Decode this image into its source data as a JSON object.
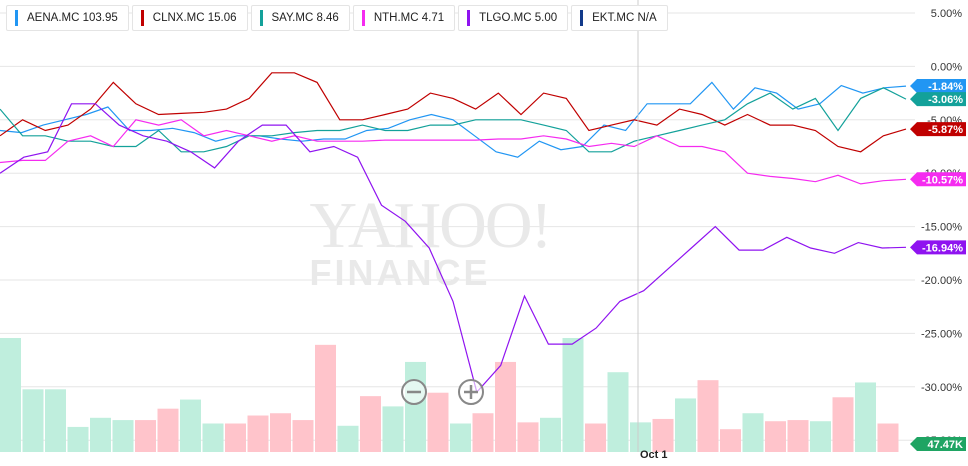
{
  "legend": [
    {
      "label": "AENA.MC 103.95",
      "color": "#2196f3"
    },
    {
      "label": "CLNX.MC 15.06",
      "color": "#c00000"
    },
    {
      "label": "SAY.MC 8.46",
      "color": "#13a19a"
    },
    {
      "label": "NTH.MC 4.71",
      "color": "#f52bf0"
    },
    {
      "label": "TLGO.MC 5.00",
      "color": "#8f13f0"
    },
    {
      "label": "EKT.MC N/A",
      "color": "#123a8a"
    }
  ],
  "watermark": {
    "line1": "YAHOO!",
    "line2": "FINANCE"
  },
  "zoom": {
    "out_icon": "zoom-out-icon",
    "in_icon": "zoom-in-icon"
  },
  "chart_data": {
    "type": "line",
    "y_unit": "%",
    "ylim": [
      -35,
      5
    ],
    "yticks": [
      "5.00%",
      "0.00%",
      "-5.00%",
      "-10.00%",
      "-15.00%",
      "-20.00%",
      "-25.00%",
      "-30.00%",
      "-35.00%"
    ],
    "x_label": "Oct 1",
    "series": [
      {
        "name": "AENA.MC",
        "color": "#2196f3",
        "last_label": "-1.84%",
        "values": [
          -6.0,
          -6.2,
          -5.5,
          -5.0,
          -4.5,
          -3.8,
          -6.0,
          -6.0,
          -5.8,
          -6.2,
          -7.0,
          -6.5,
          -6.5,
          -6.8,
          -7.0,
          -6.8,
          -6.8,
          -6.0,
          -5.8,
          -5.0,
          -4.5,
          -5.0,
          -6.5,
          -8.0,
          -8.5,
          -7.0,
          -7.8,
          -7.5,
          -5.5,
          -6.0,
          -3.5,
          -3.5,
          -3.5,
          -1.5,
          -4.0,
          -2.0,
          -2.5,
          -4.0,
          -3.5,
          -1.8,
          -2.5,
          -2.0,
          -1.84
        ]
      },
      {
        "name": "CLNX.MC",
        "color": "#c00000",
        "last_label": "-5.87%",
        "values": [
          -6.5,
          -5.0,
          -6.0,
          -5.5,
          -4.0,
          -1.5,
          -3.5,
          -4.5,
          -4.4,
          -4.3,
          -4.0,
          -3.0,
          -0.6,
          -0.6,
          -1.5,
          -5.0,
          -5.0,
          -4.5,
          -4.0,
          -2.5,
          -3.0,
          -4.0,
          -2.5,
          -4.5,
          -2.5,
          -3.0,
          -6.0,
          -5.5,
          -5.0,
          -5.5,
          -4.0,
          -4.5,
          -5.5,
          -4.5,
          -5.5,
          -5.5,
          -6.0,
          -7.5,
          -8.0,
          -6.5,
          -5.87
        ]
      },
      {
        "name": "SAY.MC",
        "color": "#13a19a",
        "last_label": "-3.06%",
        "values": [
          -4.0,
          -6.5,
          -6.5,
          -7.0,
          -7.0,
          -7.5,
          -7.5,
          -6.0,
          -8.0,
          -8.0,
          -7.5,
          -6.5,
          -6.5,
          -6.2,
          -6.0,
          -6.0,
          -5.5,
          -6.0,
          -6.0,
          -5.5,
          -5.5,
          -5.0,
          -5.0,
          -5.0,
          -5.5,
          -6.0,
          -8.0,
          -8.0,
          -7.0,
          -6.5,
          -6.0,
          -5.5,
          -5.0,
          -3.5,
          -2.5,
          -4.0,
          -3.0,
          -6.0,
          -3.0,
          -2.0,
          -3.06
        ]
      },
      {
        "name": "NTH.MC",
        "color": "#f52bf0",
        "last_label": "-10.57%",
        "values": [
          -9.0,
          -8.8,
          -8.8,
          -7.0,
          -6.5,
          -7.5,
          -5.0,
          -5.5,
          -5.0,
          -6.5,
          -6.0,
          -6.5,
          -7.0,
          -6.5,
          -7.0,
          -7.0,
          -7.0,
          -6.9,
          -6.9,
          -6.9,
          -6.9,
          -6.9,
          -6.8,
          -6.8,
          -6.5,
          -6.8,
          -7.5,
          -7.2,
          -7.5,
          -6.5,
          -7.5,
          -7.5,
          -8.0,
          -10.0,
          -10.3,
          -10.5,
          -10.8,
          -10.2,
          -11.0,
          -10.7,
          -10.57
        ]
      },
      {
        "name": "TLGO.MC",
        "color": "#8f13f0",
        "last_label": "-16.94%",
        "values": [
          -10.0,
          -8.5,
          -8.0,
          -3.5,
          -3.5,
          -5.5,
          -6.5,
          -7.0,
          -8.0,
          -9.5,
          -7.0,
          -5.5,
          -5.5,
          -8.0,
          -7.5,
          -8.5,
          -13.0,
          -14.5,
          -17.0,
          -22.0,
          -30.5,
          -28.0,
          -21.5,
          -26.0,
          -26.0,
          -24.5,
          -22.0,
          -21.0,
          -19.0,
          -17.0,
          -15.0,
          -17.2,
          -17.2,
          -16.0,
          -17.0,
          -17.5,
          -16.5,
          -17.0,
          -16.94
        ]
      },
      {
        "name": "EKT.MC",
        "color": "#123a8a",
        "last_label": "",
        "values": []
      }
    ],
    "volume": {
      "last_label": "47.47K",
      "bars": [
        {
          "v": 1.0,
          "up": true
        },
        {
          "v": 0.55,
          "up": true
        },
        {
          "v": 0.55,
          "up": true
        },
        {
          "v": 0.22,
          "up": true
        },
        {
          "v": 0.3,
          "up": true
        },
        {
          "v": 0.28,
          "up": true
        },
        {
          "v": 0.28,
          "up": false
        },
        {
          "v": 0.38,
          "up": false
        },
        {
          "v": 0.46,
          "up": true
        },
        {
          "v": 0.25,
          "up": true
        },
        {
          "v": 0.25,
          "up": false
        },
        {
          "v": 0.32,
          "up": false
        },
        {
          "v": 0.34,
          "up": false
        },
        {
          "v": 0.28,
          "up": false
        },
        {
          "v": 0.94,
          "up": false
        },
        {
          "v": 0.23,
          "up": true
        },
        {
          "v": 0.49,
          "up": false
        },
        {
          "v": 0.4,
          "up": true
        },
        {
          "v": 0.79,
          "up": true
        },
        {
          "v": 0.52,
          "up": false
        },
        {
          "v": 0.25,
          "up": true
        },
        {
          "v": 0.34,
          "up": false
        },
        {
          "v": 0.79,
          "up": false
        },
        {
          "v": 0.26,
          "up": false
        },
        {
          "v": 0.3,
          "up": true
        },
        {
          "v": 1.0,
          "up": true
        },
        {
          "v": 0.25,
          "up": false
        },
        {
          "v": 0.7,
          "up": true
        },
        {
          "v": 0.26,
          "up": true
        },
        {
          "v": 0.29,
          "up": false
        },
        {
          "v": 0.47,
          "up": true
        },
        {
          "v": 0.63,
          "up": false
        },
        {
          "v": 0.2,
          "up": false
        },
        {
          "v": 0.34,
          "up": true
        },
        {
          "v": 0.27,
          "up": false
        },
        {
          "v": 0.28,
          "up": false
        },
        {
          "v": 0.27,
          "up": true
        },
        {
          "v": 0.48,
          "up": false
        },
        {
          "v": 0.61,
          "up": true
        },
        {
          "v": 0.25,
          "up": false
        }
      ]
    }
  }
}
